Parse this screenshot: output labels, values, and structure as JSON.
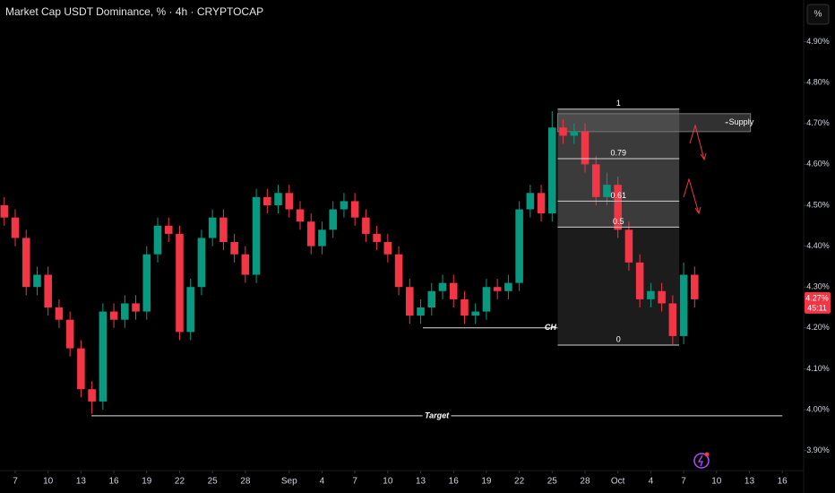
{
  "chart_data": {
    "type": "candlestick",
    "title": "Market Cap USDT Dominance, % · 4h · CRYPTOCAP",
    "unit_button": "%",
    "up_color": "#089981",
    "down_color": "#f23645",
    "xlim": [
      -1.39,
      71.95
    ],
    "ylim": [
      3.851,
      5.002
    ],
    "xticks": [
      {
        "value": 0,
        "label": "7"
      },
      {
        "value": 3,
        "label": "10"
      },
      {
        "value": 6,
        "label": "13"
      },
      {
        "value": 9,
        "label": "16"
      },
      {
        "value": 12,
        "label": "19"
      },
      {
        "value": 15,
        "label": "22"
      },
      {
        "value": 18,
        "label": "25"
      },
      {
        "value": 21,
        "label": "28"
      },
      {
        "value": 25,
        "label": "Sep"
      },
      {
        "value": 28,
        "label": "4"
      },
      {
        "value": 31,
        "label": "7"
      },
      {
        "value": 34,
        "label": "10"
      },
      {
        "value": 37,
        "label": "13"
      },
      {
        "value": 40,
        "label": "16"
      },
      {
        "value": 43,
        "label": "19"
      },
      {
        "value": 46,
        "label": "22"
      },
      {
        "value": 49,
        "label": "25"
      },
      {
        "value": 52,
        "label": "28"
      },
      {
        "value": 55,
        "label": "Oct"
      },
      {
        "value": 58,
        "label": "4"
      },
      {
        "value": 61,
        "label": "7"
      },
      {
        "value": 64,
        "label": "10"
      },
      {
        "value": 67,
        "label": "13"
      },
      {
        "value": 70,
        "label": "16"
      }
    ],
    "yticks": [
      {
        "value": 3.9,
        "label": "3.90%"
      },
      {
        "value": 4.0,
        "label": "4.00%"
      },
      {
        "value": 4.1,
        "label": "4.10%"
      },
      {
        "value": 4.2,
        "label": "4.20%"
      },
      {
        "value": 4.3,
        "label": "4.30%"
      },
      {
        "value": 4.4,
        "label": "4.40%"
      },
      {
        "value": 4.5,
        "label": "4.50%"
      },
      {
        "value": 4.6,
        "label": "4.60%"
      },
      {
        "value": 4.7,
        "label": "4.70%"
      },
      {
        "value": 4.8,
        "label": "4.80%"
      },
      {
        "value": 4.9,
        "label": "4.90%"
      }
    ],
    "x": [
      -1,
      0,
      1,
      2,
      3,
      4,
      5,
      6,
      7,
      8,
      9,
      10,
      11,
      12,
      13,
      14,
      15,
      16,
      17,
      18,
      19,
      20,
      21,
      22,
      23,
      24,
      25,
      26,
      27,
      28,
      29,
      30,
      31,
      32,
      33,
      34,
      35,
      36,
      37,
      38,
      39,
      40,
      41,
      42,
      43,
      44,
      45,
      46,
      47,
      48,
      49,
      50,
      51,
      52,
      53,
      54,
      55,
      56,
      57,
      58,
      59,
      60,
      61,
      62
    ],
    "open": [
      4.5,
      4.47,
      4.42,
      4.3,
      4.33,
      4.25,
      4.22,
      4.15,
      4.05,
      4.02,
      4.24,
      4.22,
      4.26,
      4.24,
      4.38,
      4.45,
      4.43,
      4.19,
      4.3,
      4.42,
      4.47,
      4.41,
      4.38,
      4.33,
      4.52,
      4.5,
      4.53,
      4.49,
      4.46,
      4.4,
      4.44,
      4.49,
      4.51,
      4.47,
      4.43,
      4.41,
      4.38,
      4.3,
      4.23,
      4.25,
      4.29,
      4.31,
      4.27,
      4.23,
      4.24,
      4.3,
      4.29,
      4.31,
      4.49,
      4.53,
      4.48,
      4.69,
      4.67,
      4.68,
      4.6,
      4.52,
      4.55,
      4.44,
      4.36,
      4.27,
      4.29,
      4.26,
      4.18,
      4.33
    ],
    "high": [
      4.52,
      4.49,
      4.44,
      4.35,
      4.35,
      4.27,
      4.24,
      4.17,
      4.07,
      4.26,
      4.26,
      4.28,
      4.28,
      4.4,
      4.47,
      4.47,
      4.45,
      4.32,
      4.44,
      4.49,
      4.49,
      4.43,
      4.4,
      4.54,
      4.54,
      4.55,
      4.55,
      4.51,
      4.48,
      4.46,
      4.51,
      4.53,
      4.53,
      4.49,
      4.45,
      4.43,
      4.4,
      4.32,
      4.27,
      4.31,
      4.33,
      4.33,
      4.29,
      4.26,
      4.32,
      4.32,
      4.33,
      4.51,
      4.55,
      4.55,
      4.73,
      4.71,
      4.7,
      4.7,
      4.62,
      4.58,
      4.57,
      4.46,
      4.38,
      4.31,
      4.31,
      4.28,
      4.36,
      4.35
    ],
    "low": [
      4.45,
      4.4,
      4.28,
      4.28,
      4.23,
      4.2,
      4.13,
      4.03,
      3.99,
      4.0,
      4.2,
      4.2,
      4.22,
      4.22,
      4.36,
      4.41,
      4.17,
      4.17,
      4.28,
      4.4,
      4.39,
      4.36,
      4.31,
      4.31,
      4.48,
      4.48,
      4.47,
      4.44,
      4.38,
      4.38,
      4.42,
      4.47,
      4.45,
      4.41,
      4.39,
      4.36,
      4.28,
      4.21,
      4.21,
      4.23,
      4.27,
      4.25,
      4.21,
      4.21,
      4.22,
      4.27,
      4.27,
      4.29,
      4.47,
      4.46,
      4.46,
      4.65,
      4.65,
      4.58,
      4.5,
      4.5,
      4.42,
      4.34,
      4.25,
      4.25,
      4.24,
      4.16,
      4.16,
      4.25
    ],
    "close": [
      4.47,
      4.42,
      4.3,
      4.33,
      4.25,
      4.22,
      4.15,
      4.05,
      4.02,
      4.24,
      4.22,
      4.26,
      4.24,
      4.38,
      4.45,
      4.43,
      4.19,
      4.3,
      4.42,
      4.47,
      4.41,
      4.38,
      4.33,
      4.52,
      4.5,
      4.53,
      4.49,
      4.46,
      4.4,
      4.44,
      4.49,
      4.51,
      4.47,
      4.43,
      4.41,
      4.38,
      4.3,
      4.23,
      4.25,
      4.29,
      4.31,
      4.27,
      4.23,
      4.24,
      4.3,
      4.29,
      4.31,
      4.49,
      4.53,
      4.48,
      4.69,
      4.67,
      4.68,
      4.6,
      4.52,
      4.55,
      4.44,
      4.36,
      4.27,
      4.29,
      4.26,
      4.18,
      4.33,
      4.27
    ],
    "last_price": {
      "value": 4.27,
      "label": "4.27%"
    },
    "countdown": "45:11",
    "fib": {
      "high": 4.735,
      "low": 4.158,
      "x_start": 49.5,
      "x_end": 60.6,
      "levels": [
        1,
        0.79,
        0.61,
        0.5,
        0
      ]
    },
    "supply": {
      "label": "Supply",
      "top": 4.724,
      "bottom": 4.68,
      "x_start": 49.5,
      "x_end": 67.1
    },
    "ch": {
      "label": "CH",
      "value": 4.2,
      "x_start": 37.2,
      "x_end": 49.5
    },
    "target": {
      "label": "Target",
      "value": 3.985,
      "x_start": 6.95,
      "x_end": 70
    }
  }
}
